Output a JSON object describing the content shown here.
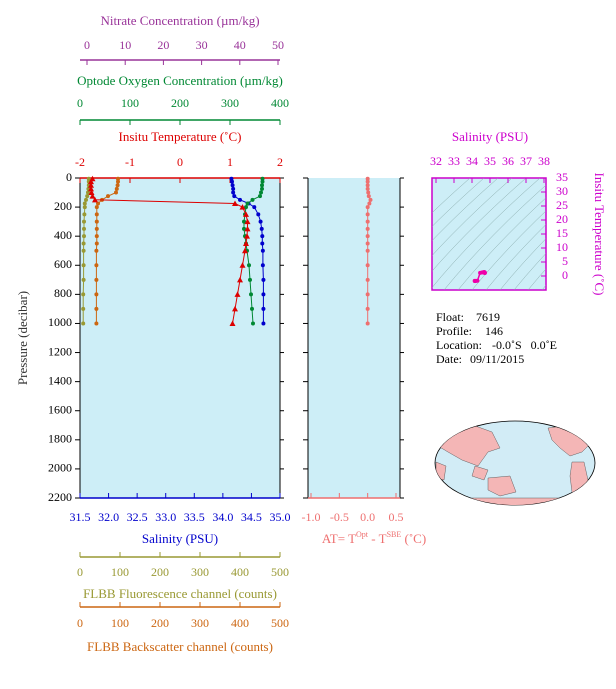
{
  "chart_data": [
    {
      "type": "profile",
      "ylabel": "Pressure (decibar)",
      "ylim": [
        0,
        2200
      ],
      "yticks": [
        0,
        200,
        400,
        600,
        800,
        1000,
        1200,
        1400,
        1600,
        1800,
        2000,
        2200
      ],
      "background": "#cdeef7",
      "xaxes": [
        {
          "label": "Nitrate Concentration (µm/kg)",
          "color": "#993399",
          "xlim": [
            0,
            50
          ],
          "xticks": [
            0,
            10,
            20,
            30,
            40,
            50
          ]
        },
        {
          "label": "Optode Oxygen Concentration (µm/kg)",
          "color": "#008833",
          "xlim": [
            0,
            400
          ],
          "xticks": [
            0,
            100,
            200,
            300,
            400
          ]
        },
        {
          "label": "Insitu Temperature (˚C)",
          "color": "#dd0000",
          "xlim": [
            -2,
            2
          ],
          "xticks": [
            -2,
            -1,
            0,
            1,
            2
          ]
        },
        {
          "label": "Salinity (PSU)",
          "color": "#0000cc",
          "xlim": [
            31.5,
            35
          ],
          "xticks": [
            31.5,
            {
              "value": 32,
              "label": "32.0"
            },
            32.5,
            {
              "value": 33,
              "label": "33.0"
            },
            33.5,
            {
              "value": 34,
              "label": "34.0"
            },
            34.5,
            {
              "value": 35,
              "label": "35.0"
            }
          ]
        },
        {
          "label": "FLBB Fluorescence channel (counts)",
          "color": "#999933",
          "xlim": [
            0,
            500
          ],
          "xticks": [
            0,
            100,
            200,
            300,
            400,
            500
          ]
        },
        {
          "label": "FLBB Backscatter channel (counts)",
          "color": "#cc6611",
          "xlim": [
            0,
            500
          ],
          "xticks": [
            0,
            100,
            200,
            300,
            400,
            500
          ]
        }
      ],
      "series": [
        {
          "axis": 4,
          "color": "#999933",
          "marker": "circle",
          "pressure": [
            5,
            25,
            50,
            75,
            100,
            125,
            150,
            175,
            200,
            250,
            300,
            350,
            400,
            450,
            500,
            600,
            700,
            800,
            900,
            1000
          ],
          "values": [
            22,
            22,
            22,
            21,
            20,
            18,
            15,
            12,
            12,
            11,
            10,
            10,
            10,
            9,
            9,
            9,
            9,
            8,
            8,
            8
          ]
        },
        {
          "axis": 5,
          "color": "#cc6611",
          "marker": "circle",
          "pressure": [
            5,
            25,
            50,
            75,
            100,
            125,
            150,
            175,
            200,
            250,
            300,
            350,
            400,
            450,
            500,
            600,
            700,
            800,
            900,
            1000
          ],
          "values": [
            95,
            95,
            94,
            92,
            90,
            70,
            55,
            45,
            42,
            42,
            42,
            42,
            42,
            42,
            41,
            41,
            41,
            41,
            41,
            41
          ]
        },
        {
          "axis": 3,
          "color": "#0000cc",
          "marker": "circle",
          "pressure": [
            5,
            25,
            50,
            75,
            100,
            125,
            150,
            175,
            200,
            250,
            300,
            350,
            400,
            450,
            500,
            600,
            700,
            800,
            900,
            1000
          ],
          "values": [
            34.15,
            34.16,
            34.17,
            34.18,
            34.18,
            34.2,
            34.3,
            34.45,
            34.55,
            34.62,
            34.66,
            34.68,
            34.69,
            34.69,
            34.7,
            34.7,
            34.71,
            34.71,
            34.71,
            34.71
          ]
        },
        {
          "axis": 1,
          "color": "#008833",
          "marker": "circle",
          "pressure": [
            5,
            25,
            50,
            75,
            100,
            125,
            150,
            175,
            200,
            250,
            300,
            350,
            400,
            450,
            500,
            600,
            700,
            800,
            900,
            1000
          ],
          "values": [
            365,
            365,
            364,
            364,
            362,
            360,
            345,
            335,
            332,
            330,
            328,
            328,
            330,
            332,
            334,
            338,
            340,
            342,
            344,
            346
          ]
        },
        {
          "axis": 2,
          "color": "#dd0000",
          "marker": "triangle",
          "pressure": [
            5,
            25,
            50,
            75,
            100,
            125,
            150,
            175,
            200,
            250,
            300,
            350,
            400,
            450,
            500,
            600,
            700,
            800,
            900,
            1000
          ],
          "values": [
            -1.75,
            -1.78,
            -1.78,
            -1.78,
            -1.77,
            -1.75,
            -1.7,
            1.1,
            1.25,
            1.32,
            1.35,
            1.35,
            1.34,
            1.32,
            1.3,
            1.25,
            1.2,
            1.15,
            1.1,
            1.05
          ]
        }
      ]
    },
    {
      "type": "profile",
      "ylim": [
        0,
        2200
      ],
      "yticks": [
        0,
        200,
        400,
        600,
        800,
        1000,
        1200,
        1400,
        1600,
        1800,
        2000,
        2200
      ],
      "background": "#cdeef7",
      "xaxes": [
        {
          "label": [
            "AT= T",
            "Opt",
            " - T",
            "SBE",
            " (˚C)"
          ],
          "color": "#ee6f6f",
          "xlim": [
            -1,
            0.5
          ],
          "xticks": [
            {
              "value": -1,
              "label": "-1.0"
            },
            -0.5,
            {
              "value": 0,
              "label": "0.0"
            },
            0.5
          ]
        }
      ],
      "series": [
        {
          "axis": 0,
          "color": "#ee6f6f",
          "marker": "circle",
          "pressure": [
            5,
            25,
            50,
            75,
            100,
            125,
            150,
            175,
            200,
            250,
            300,
            350,
            400,
            450,
            500,
            600,
            700,
            800,
            900,
            1000
          ],
          "values": [
            0.0,
            0.0,
            0.0,
            0.0,
            0.01,
            0.02,
            0.05,
            0.03,
            0.0,
            0.0,
            0.0,
            0.0,
            0.0,
            0.0,
            0.0,
            0.0,
            0.0,
            0.0,
            0.0,
            0.0
          ]
        }
      ]
    },
    {
      "type": "scatter",
      "xlabel": "Salinity (PSU)",
      "ylabel": "Insitu Temperature (˚C)",
      "color": "#cc00cc",
      "xlim": [
        32,
        38
      ],
      "xticks": [
        32,
        33,
        34,
        35,
        36,
        37,
        38
      ],
      "ylim": [
        -5,
        35
      ],
      "yticks": [
        0,
        5,
        10,
        15,
        20,
        25,
        30,
        35
      ],
      "series": [
        {
          "color": "#ee00aa",
          "x": [
            34.15,
            34.16,
            34.17,
            34.18,
            34.18,
            34.2,
            34.3,
            34.45,
            34.55,
            34.62,
            34.66,
            34.68,
            34.69,
            34.69,
            34.7,
            34.7,
            34.71,
            34.71,
            34.71,
            34.71
          ],
          "values": [
            -1.75,
            -1.78,
            -1.78,
            -1.78,
            -1.77,
            -1.75,
            -1.7,
            1.1,
            1.25,
            1.32,
            1.35,
            1.35,
            1.34,
            1.32,
            1.3,
            1.25,
            1.2,
            1.15,
            1.1,
            1.05
          ]
        }
      ]
    }
  ],
  "info": [
    {
      "label": "Float:",
      "value": "7619"
    },
    {
      "label": "Profile:",
      "value": "146"
    },
    {
      "label": "Location:",
      "value": "-0.0˚S   0.0˚E"
    },
    {
      "label": "Date:",
      "value": "09/11/2015"
    }
  ]
}
